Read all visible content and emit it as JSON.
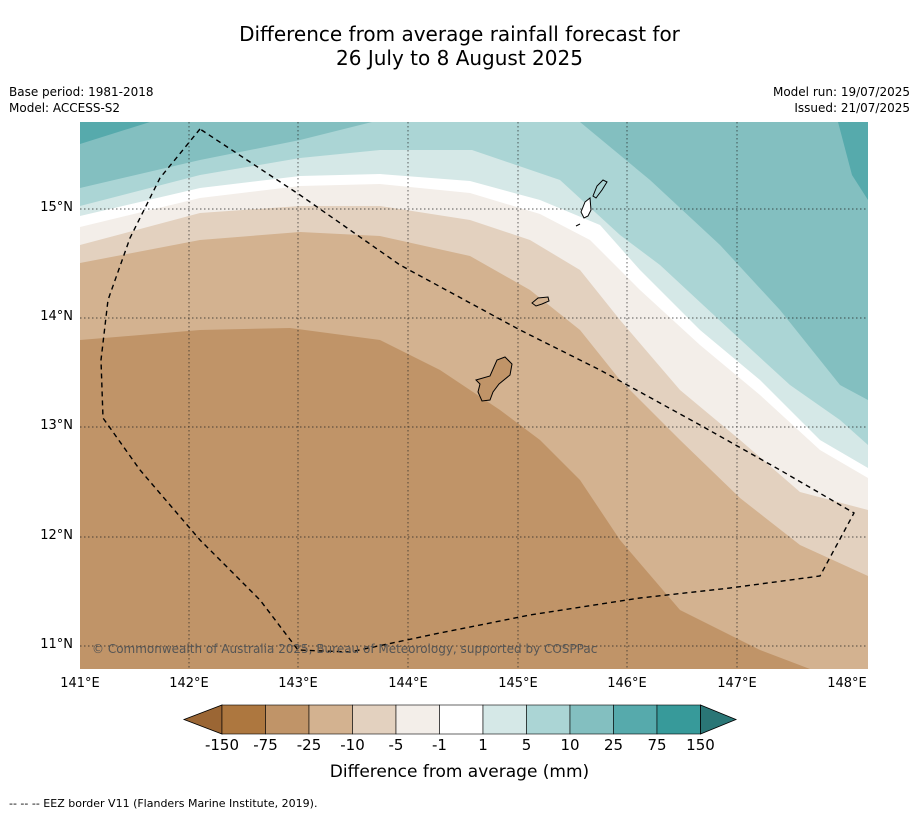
{
  "title_line1": "Difference from average rainfall forecast for",
  "title_line2": "26 July to 8 August 2025",
  "meta_left": {
    "base_period": "Base period: 1981-2018",
    "model": "Model: ACCESS-S2"
  },
  "meta_right": {
    "model_run": "Model run: 19/07/2025",
    "issued": "Issued: 21/07/2025"
  },
  "map": {
    "x_ticks": [
      "141°E",
      "142°E",
      "143°E",
      "144°E",
      "145°E",
      "146°E",
      "147°E",
      "148°E"
    ],
    "y_ticks": [
      "15°N",
      "14°N",
      "13°N",
      "12°N",
      "11°N"
    ],
    "copyright": "© Commonwealth of Australia 2025, Bureau of Meteorology, supported by COSPPac"
  },
  "colorbar": {
    "labels": [
      "-150",
      "-75",
      "-25",
      "-10",
      "-5",
      "-1",
      "1",
      "5",
      "10",
      "25",
      "75",
      "150"
    ],
    "colors": [
      "#9b6634",
      "#ad773f",
      "#c09468",
      "#d3b290",
      "#e3d1bf",
      "#f3eee9",
      "#ffffff",
      "#d5e8e7",
      "#abd5d5",
      "#83bfc0",
      "#56aaac",
      "#379a9a",
      "#2a7676"
    ],
    "title": "Difference from average (mm)"
  },
  "footnote": "--  --  -- EEZ border V11 (Flanders Marine Institute, 2019)."
}
